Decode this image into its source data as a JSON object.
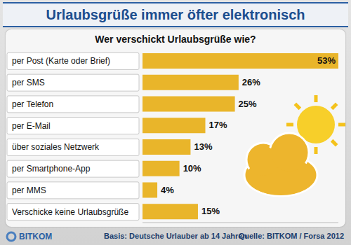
{
  "chart_data": {
    "type": "bar",
    "orientation": "horizontal",
    "title": "Urlaubsgrüße immer öfter elektronisch",
    "subtitle": "Wer verschickt Urlaubsgrüße wie?",
    "categories": [
      "per Post (Karte oder Brief)",
      "per SMS",
      "per Telefon",
      "per E-Mail",
      "über soziales Netzwerk",
      "per Smartphone-App",
      "per MMS",
      "Verschicke keine Urlaubsgrüße"
    ],
    "values": [
      53,
      26,
      25,
      17,
      13,
      10,
      4,
      15
    ],
    "value_labels": [
      "53%",
      "26%",
      "25%",
      "17%",
      "13%",
      "10%",
      "4%",
      "15%"
    ],
    "data_labels": true,
    "color": "#e9b52a",
    "xlim": [
      0,
      53
    ],
    "tick_labels": false,
    "grid": false,
    "footnote": "Basis: Deutsche Urlauber ab 14 Jahren",
    "source": "Quelle: BITKOM / Forsa 2012",
    "logo": "BITKOM"
  }
}
